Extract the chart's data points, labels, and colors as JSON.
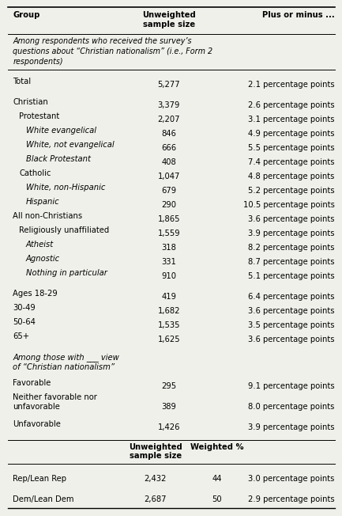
{
  "title_col1": "Group",
  "title_col2": "Unweighted\nsample size",
  "title_col3": "Plus or minus ...",
  "subtitle": "Among respondents who received the survey’s\nquestions about “Christian nationalism” (i.e., Form 2\nrespondents)",
  "rows": [
    {
      "group": "Total",
      "indent": 0,
      "italic": false,
      "sample": "5,277",
      "margin": "2.1 percentage points",
      "blank_above": true,
      "multiline": false
    },
    {
      "group": "Christian",
      "indent": 0,
      "italic": false,
      "sample": "3,379",
      "margin": "2.6 percentage points",
      "blank_above": true,
      "multiline": false
    },
    {
      "group": "Protestant",
      "indent": 1,
      "italic": false,
      "sample": "2,207",
      "margin": "3.1 percentage points",
      "blank_above": false,
      "multiline": false
    },
    {
      "group": "White evangelical",
      "indent": 2,
      "italic": true,
      "sample": "846",
      "margin": "4.9 percentage points",
      "blank_above": false,
      "multiline": false
    },
    {
      "group": "White, not evangelical",
      "indent": 2,
      "italic": true,
      "sample": "666",
      "margin": "5.5 percentage points",
      "blank_above": false,
      "multiline": false
    },
    {
      "group": "Black Protestant",
      "indent": 2,
      "italic": true,
      "sample": "408",
      "margin": "7.4 percentage points",
      "blank_above": false,
      "multiline": false
    },
    {
      "group": "Catholic",
      "indent": 1,
      "italic": false,
      "sample": "1,047",
      "margin": "4.8 percentage points",
      "blank_above": false,
      "multiline": false
    },
    {
      "group": "White, non-Hispanic",
      "indent": 2,
      "italic": true,
      "sample": "679",
      "margin": "5.2 percentage points",
      "blank_above": false,
      "multiline": false
    },
    {
      "group": "Hispanic",
      "indent": 2,
      "italic": true,
      "sample": "290",
      "margin": "10.5 percentage points",
      "blank_above": false,
      "multiline": false
    },
    {
      "group": "All non-Christians",
      "indent": 0,
      "italic": false,
      "sample": "1,865",
      "margin": "3.6 percentage points",
      "blank_above": false,
      "multiline": false
    },
    {
      "group": "Religiously unaffiliated",
      "indent": 1,
      "italic": false,
      "sample": "1,559",
      "margin": "3.9 percentage points",
      "blank_above": false,
      "multiline": false
    },
    {
      "group": "Atheist",
      "indent": 2,
      "italic": true,
      "sample": "318",
      "margin": "8.2 percentage points",
      "blank_above": false,
      "multiline": false
    },
    {
      "group": "Agnostic",
      "indent": 2,
      "italic": true,
      "sample": "331",
      "margin": "8.7 percentage points",
      "blank_above": false,
      "multiline": false
    },
    {
      "group": "Nothing in particular",
      "indent": 2,
      "italic": true,
      "sample": "910",
      "margin": "5.1 percentage points",
      "blank_above": false,
      "multiline": false
    },
    {
      "group": "Ages 18-29",
      "indent": 0,
      "italic": false,
      "sample": "419",
      "margin": "6.4 percentage points",
      "blank_above": true,
      "multiline": false
    },
    {
      "group": "30-49",
      "indent": 0,
      "italic": false,
      "sample": "1,682",
      "margin": "3.6 percentage points",
      "blank_above": false,
      "multiline": false
    },
    {
      "group": "50-64",
      "indent": 0,
      "italic": false,
      "sample": "1,535",
      "margin": "3.5 percentage points",
      "blank_above": false,
      "multiline": false
    },
    {
      "group": "65+",
      "indent": 0,
      "italic": false,
      "sample": "1,625",
      "margin": "3.6 percentage points",
      "blank_above": false,
      "multiline": false
    },
    {
      "group": "Among those with ___ view\nof “Christian nationalism”",
      "indent": 0,
      "italic": true,
      "sample": "",
      "margin": "",
      "blank_above": true,
      "multiline": true
    },
    {
      "group": "Favorable",
      "indent": 0,
      "italic": false,
      "sample": "295",
      "margin": "9.1 percentage points",
      "blank_above": false,
      "multiline": false
    },
    {
      "group": "Neither favorable nor\nunfavorable",
      "indent": 0,
      "italic": false,
      "sample": "389",
      "margin": "8.0 percentage points",
      "blank_above": false,
      "multiline": true
    },
    {
      "group": "Unfavorable",
      "indent": 0,
      "italic": false,
      "sample": "1,426",
      "margin": "3.9 percentage points",
      "blank_above": false,
      "multiline": false
    }
  ],
  "footer_rows": [
    {
      "group": "Rep/Lean Rep",
      "sample": "2,432",
      "weighted": "44",
      "margin": "3.0 percentage points"
    },
    {
      "group": "Dem/Lean Dem",
      "sample": "2,687",
      "weighted": "50",
      "margin": "2.9 percentage points"
    }
  ],
  "footer_col2a": "Unweighted\nsample size",
  "footer_col2b": "Weighted %",
  "bg_color": "#f0f0eb",
  "text_color": "#000000",
  "font_size": 7.2
}
